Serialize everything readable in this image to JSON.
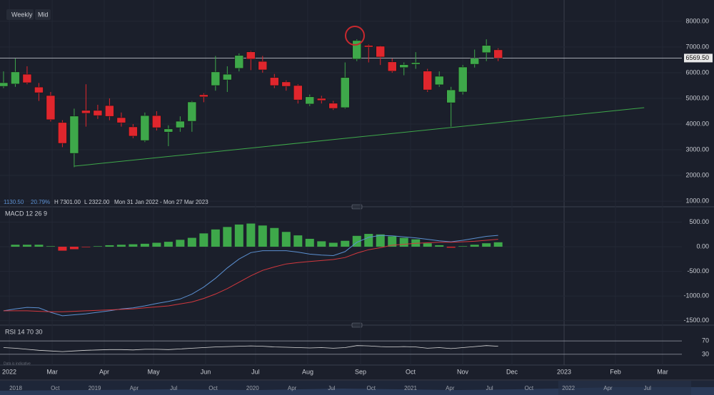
{
  "controls": {
    "interval": "Weekly",
    "price_type": "Mid"
  },
  "info": {
    "change": "1130.50",
    "change_pct": "20.79%",
    "high": "H 7301.00",
    "low": "L 2322.00",
    "range": "Mon 31 Jan 2022 - Mon 27 Mar 2023"
  },
  "footnote": "Data is indicative",
  "navigator_labels": [
    "2018",
    "Oct",
    "2019",
    "Apr",
    "Jul",
    "Oct",
    "2020",
    "Apr",
    "Jul",
    "Oct",
    "2021",
    "Apr",
    "Jul",
    "Oct",
    "2022",
    "Apr",
    "Jul"
  ],
  "chart_data": [
    {
      "type": "candlestick",
      "up_color": "#3ea84a",
      "down_color": "#e0262d",
      "open": [
        5470,
        5560,
        5940,
        5440,
        5110,
        4060,
        2860,
        4530,
        4530,
        4720,
        4250,
        3890,
        3360,
        4330,
        3690,
        3860,
        4110,
        5140,
        5500,
        5720,
        6170,
        6810,
        6440,
        5810,
        5640,
        5500,
        4780,
        5000,
        4810,
        4640,
        6530,
        7060,
        7030,
        6420,
        6200,
        6330,
        6060,
        5530,
        4830,
        5250,
        6330,
        6780,
        6890
      ],
      "high": [
        6050,
        6550,
        6250,
        5600,
        5250,
        4150,
        4600,
        5550,
        4750,
        5000,
        4450,
        4000,
        4450,
        4500,
        3950,
        4300,
        4900,
        5200,
        6650,
        6250,
        6750,
        6850,
        6650,
        5950,
        5700,
        5550,
        5150,
        5100,
        4900,
        6400,
        7301,
        7100,
        7050,
        6550,
        6400,
        6800,
        6150,
        6050,
        5450,
        6300,
        6900,
        7300,
        6950
      ],
      "low": [
        5400,
        5450,
        5550,
        4900,
        4100,
        3100,
        2322,
        3900,
        4200,
        4150,
        3900,
        3450,
        3300,
        3750,
        3140,
        3700,
        3700,
        4850,
        5300,
        5250,
        6050,
        6100,
        6000,
        5400,
        5300,
        4800,
        4700,
        4800,
        4550,
        4600,
        6450,
        6400,
        6300,
        6000,
        5900,
        6150,
        5250,
        5450,
        3900,
        5150,
        6200,
        6450,
        6450
      ],
      "close": [
        5610,
        6030,
        5610,
        5220,
        4170,
        3250,
        4310,
        4420,
        4330,
        4300,
        4050,
        3530,
        4330,
        3860,
        3810,
        4110,
        4860,
        5060,
        6030,
        5940,
        6670,
        6530,
        6110,
        5500,
        5470,
        4940,
        5060,
        4920,
        4610,
        5810,
        7250,
        7000,
        6610,
        6060,
        6310,
        6390,
        5330,
        5860,
        5330,
        6220,
        6560,
        7060,
        6569.5
      ],
      "last_price": {
        "value": 6569.5,
        "label": "6569.50"
      },
      "trendline": {
        "x": [
          6,
          54.4
        ],
        "values": [
          2361,
          4639
        ],
        "color": "#3ea84a"
      },
      "xlim": [
        -0.3,
        57.6
      ],
      "xticks": [
        {
          "value": 0.49,
          "label": "2022"
        },
        {
          "value": 4.13,
          "label": "Mar"
        },
        {
          "value": 8.55,
          "label": "Apr"
        },
        {
          "value": 12.74,
          "label": "May"
        },
        {
          "value": 17.16,
          "label": "Jun"
        },
        {
          "value": 21.4,
          "label": "Jul"
        },
        {
          "value": 25.83,
          "label": "Aug"
        },
        {
          "value": 30.32,
          "label": "Sep"
        },
        {
          "value": 34.56,
          "label": "Oct"
        },
        {
          "value": 38.99,
          "label": "Nov"
        },
        {
          "value": 43.17,
          "label": "Dec"
        },
        {
          "value": 47.6,
          "label": "2023"
        },
        {
          "value": 51.96,
          "label": "Feb"
        },
        {
          "value": 55.96,
          "label": "Mar"
        }
      ],
      "ylim": [
        780,
        8830
      ],
      "yticks": [
        {
          "value": 8000,
          "label": "8000.00"
        },
        {
          "value": 7000,
          "label": "7000.00"
        },
        {
          "value": 6000,
          "label": "6000.00"
        },
        {
          "value": 5000,
          "label": "5000.00"
        },
        {
          "value": 4000,
          "label": "4000.00"
        },
        {
          "value": 3000,
          "label": "3000.00"
        },
        {
          "value": 2000,
          "label": "2000.00"
        },
        {
          "value": 1000,
          "label": "1000.00"
        }
      ]
    },
    {
      "type": "macd",
      "label": "MACD 12 26 9",
      "histogram": {
        "color": "#3ea84a",
        "negative_color": "#e0262d",
        "values": [
          null,
          40,
          40,
          40,
          10,
          -80,
          -50,
          -10,
          10,
          30,
          40,
          50,
          60,
          80,
          100,
          140,
          180,
          270,
          350,
          400,
          450,
          470,
          430,
          380,
          300,
          230,
          160,
          110,
          80,
          120,
          220,
          260,
          250,
          210,
          180,
          150,
          70,
          30,
          -20,
          10,
          40,
          70,
          90
        ]
      },
      "series": [
        {
          "name": "MACD",
          "color": "#5b8fd0",
          "values": [
            -1300,
            -1260,
            -1230,
            -1240,
            -1330,
            -1400,
            -1380,
            -1360,
            -1330,
            -1300,
            -1260,
            -1240,
            -1200,
            -1150,
            -1110,
            -1060,
            -960,
            -820,
            -640,
            -430,
            -250,
            -120,
            -80,
            -80,
            -80,
            -110,
            -150,
            -170,
            -180,
            -100,
            90,
            190,
            230,
            220,
            200,
            180,
            150,
            120,
            100,
            130,
            170,
            210,
            230
          ]
        },
        {
          "name": "Signal",
          "color": "#d2383e",
          "values": [
            -1300,
            -1300,
            -1300,
            -1310,
            -1320,
            -1320,
            -1310,
            -1300,
            -1290,
            -1280,
            -1270,
            -1260,
            -1240,
            -1220,
            -1200,
            -1160,
            -1120,
            -1050,
            -960,
            -850,
            -720,
            -590,
            -480,
            -410,
            -350,
            -320,
            -300,
            -280,
            -260,
            -220,
            -130,
            -60,
            -20,
            30,
            50,
            70,
            80,
            90,
            90,
            100,
            110,
            130,
            150
          ]
        }
      ],
      "ylim": [
        -1590,
        810
      ],
      "yticks": [
        {
          "value": 500,
          "label": "500.00"
        },
        {
          "value": 0,
          "label": "0.00"
        },
        {
          "value": -500,
          "label": "-500.00"
        },
        {
          "value": -1000,
          "label": "-1000.00"
        },
        {
          "value": -1500,
          "label": "-1500.00"
        }
      ]
    },
    {
      "type": "line",
      "label": "RSI 14 70 30",
      "series": [
        {
          "name": "RSI",
          "color": "#d8d8d8",
          "values": [
            50,
            48,
            45,
            42,
            40,
            38,
            40,
            42,
            43,
            44,
            44,
            43,
            45,
            45,
            44,
            46,
            48,
            50,
            52,
            53,
            54,
            55,
            54,
            52,
            51,
            50,
            49,
            50,
            48,
            50,
            56,
            55,
            53,
            52,
            53,
            52,
            48,
            50,
            47,
            50,
            53,
            56,
            54
          ]
        }
      ],
      "ylim": [
        0,
        100
      ],
      "yticks": [
        70,
        30
      ]
    }
  ]
}
